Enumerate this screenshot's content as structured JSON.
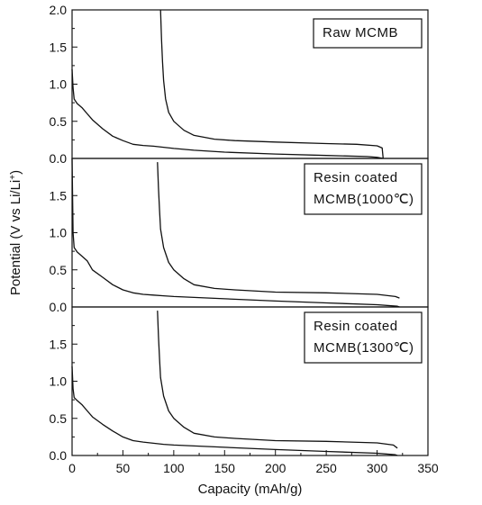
{
  "chart_data": {
    "type": "line",
    "xlabel": "Capacity (mAh/g)",
    "ylabel": "Potential (V vs Li/Li+)",
    "xlim": [
      0,
      350
    ],
    "x_ticks": [
      "0",
      "50",
      "100",
      "150",
      "200",
      "250",
      "300",
      "350"
    ],
    "ylim": [
      0,
      2.0
    ],
    "y_ticks_top": [
      "0.0",
      "0.5",
      "1.0",
      "1.5",
      "2.0"
    ],
    "y_ticks": [
      "0.0",
      "0.5",
      "1.0",
      "1.5"
    ],
    "grid": false,
    "panels": [
      {
        "label_lines": [
          "Raw MCMB"
        ],
        "series": [
          {
            "curve": "discharge",
            "x": [
              0,
              1,
              2,
              5,
              10,
              15,
              20,
              30,
              40,
              50,
              60,
              70,
              80,
              90,
              100,
              120,
              150,
              200,
              250,
              290,
              300,
              306
            ],
            "y": [
              1.2,
              0.95,
              0.8,
              0.74,
              0.68,
              0.6,
              0.52,
              0.4,
              0.3,
              0.24,
              0.19,
              0.175,
              0.165,
              0.15,
              0.135,
              0.11,
              0.085,
              0.06,
              0.04,
              0.025,
              0.015,
              0.0
            ]
          },
          {
            "curve": "charge",
            "x": [
              87,
              88,
              89,
              90,
              92,
              95,
              100,
              110,
              120,
              140,
              160,
              200,
              250,
              280,
              300,
              305,
              306
            ],
            "y": [
              2.0,
              1.6,
              1.3,
              1.05,
              0.8,
              0.62,
              0.5,
              0.38,
              0.31,
              0.26,
              0.24,
              0.22,
              0.2,
              0.19,
              0.17,
              0.14,
              0.0
            ]
          }
        ]
      },
      {
        "label_lines": [
          "Resin coated",
          "MCMB(1000℃)"
        ],
        "series": [
          {
            "curve": "discharge",
            "x": [
              0,
              1,
              2,
              5,
              10,
              15,
              20,
              30,
              40,
              50,
              60,
              70,
              80,
              90,
              100,
              150,
              200,
              250,
              300,
              320,
              322
            ],
            "y": [
              2.0,
              1.0,
              0.8,
              0.74,
              0.68,
              0.62,
              0.5,
              0.4,
              0.3,
              0.23,
              0.19,
              0.17,
              0.16,
              0.15,
              0.14,
              0.11,
              0.08,
              0.055,
              0.03,
              0.01,
              0.0
            ]
          },
          {
            "curve": "charge",
            "x": [
              84,
              85,
              86,
              87,
              90,
              95,
              100,
              110,
              120,
              140,
              160,
              200,
              250,
              300,
              318,
              322
            ],
            "y": [
              1.95,
              1.6,
              1.3,
              1.05,
              0.8,
              0.6,
              0.5,
              0.38,
              0.3,
              0.25,
              0.23,
              0.2,
              0.19,
              0.17,
              0.14,
              0.12
            ]
          }
        ]
      },
      {
        "label_lines": [
          "Resin coated",
          "MCMB(1300℃)"
        ],
        "series": [
          {
            "curve": "discharge",
            "x": [
              0,
              1,
              2,
              5,
              10,
              15,
              20,
              30,
              40,
              50,
              60,
              70,
              80,
              90,
              100,
              150,
              200,
              250,
              300,
              318,
              320
            ],
            "y": [
              1.2,
              0.9,
              0.78,
              0.74,
              0.68,
              0.6,
              0.52,
              0.42,
              0.33,
              0.25,
              0.2,
              0.18,
              0.165,
              0.15,
              0.14,
              0.11,
              0.08,
              0.055,
              0.03,
              0.01,
              0.0
            ]
          },
          {
            "curve": "charge",
            "x": [
              84,
              85,
              86,
              87,
              90,
              95,
              100,
              110,
              120,
              140,
              160,
              200,
              250,
              300,
              316,
              320
            ],
            "y": [
              1.95,
              1.6,
              1.3,
              1.05,
              0.8,
              0.6,
              0.5,
              0.38,
              0.3,
              0.25,
              0.23,
              0.2,
              0.19,
              0.17,
              0.14,
              0.1
            ]
          }
        ]
      }
    ]
  },
  "colors": {
    "line": "#111111",
    "background": "#ffffff"
  }
}
